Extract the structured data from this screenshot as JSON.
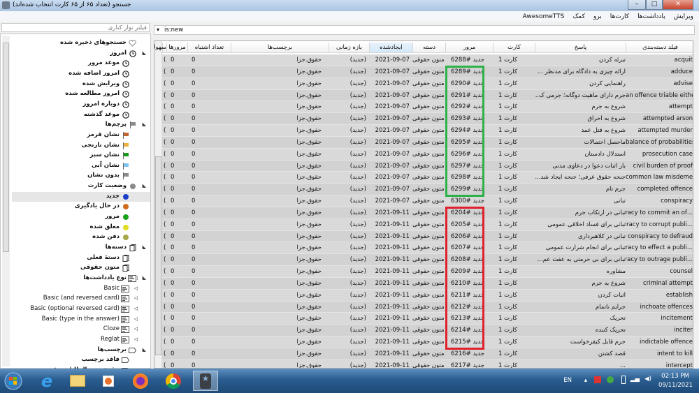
{
  "window": {
    "title": "جستجو (تعداد ۶۵ از ۶۵ کارت انتخاب شده‌اند)",
    "minimize": "–",
    "maximize": "□",
    "close": "✕"
  },
  "menu": [
    "ویرایش",
    "یادداشت‌ها",
    "کارت‌ها",
    "برو",
    "کمک",
    "AwesomeTTS"
  ],
  "sidebar": {
    "filter_placeholder": "فیلتر نوار کناری",
    "items": [
      {
        "label": "جستجوهای ذخیره شده",
        "level": 0,
        "icon": "heart-icon",
        "arrow": false
      },
      {
        "label": "امروز",
        "level": 0,
        "icon": "clock-icon",
        "arrow": true
      },
      {
        "label": "موعد مرور",
        "level": 1,
        "icon": "clock-icon"
      },
      {
        "label": "امروز اضافه شده",
        "level": 1,
        "icon": "clock-icon"
      },
      {
        "label": "ویرایش شده",
        "level": 1,
        "icon": "clock-icon"
      },
      {
        "label": "امروز مطالعه شده",
        "level": 1,
        "icon": "clock-icon"
      },
      {
        "label": "دوباره امروز",
        "level": 1,
        "icon": "clock-icon"
      },
      {
        "label": "موعد گذشته",
        "level": 1,
        "icon": "clock-icon"
      },
      {
        "label": "پرچم‌ها",
        "level": 0,
        "icon": "flag-icon",
        "color": "#8c8c8c",
        "arrow": true
      },
      {
        "label": "نشان قرمز",
        "level": 1,
        "icon": "flag-icon",
        "color": "#c2642f"
      },
      {
        "label": "نشان نارنجی",
        "level": 1,
        "icon": "flag-icon",
        "color": "#f0b040"
      },
      {
        "label": "نشان سبز",
        "level": 1,
        "icon": "flag-icon",
        "color": "#1a9a1a"
      },
      {
        "label": "نشان آبی",
        "level": 1,
        "icon": "flag-icon",
        "color": "#7ec4f0"
      },
      {
        "label": "بدون نشان",
        "level": 1,
        "icon": "flag-icon",
        "color": "#8c8c8c"
      },
      {
        "label": "وضعیت کارت",
        "level": 0,
        "icon": "dot-icon",
        "color": "#8a8a8a",
        "arrow": true
      },
      {
        "label": "جدید",
        "level": 1,
        "icon": "dot-icon",
        "color": "#1c3fc9",
        "selected": true
      },
      {
        "label": "در حال یادگیری",
        "level": 1,
        "icon": "dot-icon",
        "color": "#d06a1c"
      },
      {
        "label": "مرور",
        "level": 1,
        "icon": "dot-icon",
        "color": "#1aa01a"
      },
      {
        "label": "معلق شده",
        "level": 1,
        "icon": "dot-icon",
        "color": "#e0dc20"
      },
      {
        "label": "دفن شده",
        "level": 1,
        "icon": "dot-icon",
        "color": "#a8a848"
      },
      {
        "label": "دسته‌ها",
        "level": 0,
        "icon": "deck-icon",
        "arrow": true
      },
      {
        "label": "دستهٔ فعلی",
        "level": 1,
        "icon": "deck-icon"
      },
      {
        "label": "متون حقوقی",
        "level": 1,
        "icon": "deck-icon"
      },
      {
        "label": "نوع یادداشت‌ها",
        "level": 0,
        "icon": "notetype-icon",
        "arrow": true
      },
      {
        "label": "Basic",
        "level": 1,
        "icon": "notetype-icon",
        "ltr": true
      },
      {
        "label": "Basic (and reversed card)",
        "level": 1,
        "icon": "notetype-icon",
        "ltr": true
      },
      {
        "label": "Basic (optional reversed card)",
        "level": 1,
        "icon": "notetype-icon",
        "ltr": true
      },
      {
        "label": "Basic (type in the answer)",
        "level": 1,
        "icon": "notetype-icon",
        "ltr": true
      },
      {
        "label": "Cloze",
        "level": 1,
        "icon": "notetype-icon",
        "ltr": true
      },
      {
        "label": "Reglat",
        "level": 1,
        "icon": "notetype-icon",
        "ltr": true
      },
      {
        "label": "برچسب‌ها",
        "level": 0,
        "icon": "tag-icon",
        "arrow": true
      },
      {
        "label": "فاقد برچسب",
        "level": 1,
        "icon": "tag-icon"
      },
      {
        "label": "حقوق-بین-الملل/تعریف",
        "level": 1,
        "icon": "tag-icon"
      }
    ]
  },
  "search": {
    "value": "is:new"
  },
  "table": {
    "headers": {
      "sort_field": "فیلد دسته‌بندی",
      "answer": "پاسخ",
      "card": "کارت",
      "due": "مرور",
      "deck": "دسته",
      "created": "ایجاد‌شده",
      "interval": "بازه زمانی",
      "tags": "برچسب‌ها",
      "lapses": "تعداد اشتباه",
      "reviews": "مرورها",
      "ease": "سهولت"
    },
    "sorted_column": "created",
    "rows": [
      [
        "acquit",
        "تبرئه کردن",
        "کارت 1",
        "جدید #6288",
        "متون حقوقی",
        "2021-09-07",
        "(جدید)",
        "حقوق.جزا",
        "0",
        "0",
        "(جدید)"
      ],
      [
        "adduce",
        "ارائه چیزی به دادگاه برای مدنظر ...",
        "کارت 1",
        "جدید #6289",
        "متون حقوقی",
        "2021-09-07",
        "(جدید)",
        "حقوق.جزا",
        "0",
        "0",
        "(جدید)"
      ],
      [
        "advise",
        "راهنمایی کردن",
        "کارت 1",
        "جدید #6290",
        "متون حقوقی",
        "2021-09-07",
        "(جدید)",
        "حقوق.جزا",
        "0",
        "0",
        "(جدید)"
      ],
      [
        "an offence triable either way",
        "جرم دارای ماهیت دوگانه؛ جرمی ک...",
        "کارت 1",
        "جدید #6291",
        "متون حقوقی",
        "2021-09-07",
        "(جدید)",
        "حقوق.جزا",
        "0",
        "0",
        "(جدید)"
      ],
      [
        "attempt",
        "شروع به جرم",
        "کارت 1",
        "جدید #6292",
        "متون حقوقی",
        "2021-09-07",
        "(جدید)",
        "حقوق.جزا",
        "0",
        "0",
        "(جدید)"
      ],
      [
        "attempted arson",
        "شروع به احراق",
        "کارت 1",
        "جدید #6293",
        "متون حقوقی",
        "2021-09-07",
        "(جدید)",
        "حقوق.جزا",
        "0",
        "0",
        "(جدید)"
      ],
      [
        "attempted murder",
        "شروع به قتل عمد",
        "کارت 1",
        "جدید #6294",
        "متون حقوقی",
        "2021-09-07",
        "(جدید)",
        "حقوق.جزا",
        "0",
        "0",
        "(جدید)"
      ],
      [
        "balance of probabilities",
        "ماحصل احتمالات",
        "کارت 1",
        "جدید #6295",
        "متون حقوقی",
        "2021-09-07",
        "(جدید)",
        "حقوق.جزا",
        "0",
        "0",
        "(جدید)"
      ],
      [
        "prosecution case",
        "استدلال دادستان",
        "کارت 1",
        "جدید #6296",
        "متون حقوقی",
        "2021-09-07",
        "(جدید)",
        "حقوق.جزا",
        "0",
        "0",
        "(جدید)"
      ],
      [
        "civil burden of proof",
        "بار اثبات دعوا در دعاوی مدنی",
        "کارت 1",
        "جدید #6297",
        "متون حقوقی",
        "2021-09-07",
        "(جدید)",
        "حقوق.جزا",
        "0",
        "0",
        "(جدید)"
      ],
      [
        "common law misdemeanor",
        "جنحه حقوق عرفی؛ جنحه ایجاد شد...",
        "کارت 1",
        "جدید #6298",
        "متون حقوقی",
        "2021-09-07",
        "(جدید)",
        "حقوق.جزا",
        "0",
        "0",
        "(جدید)"
      ],
      [
        "completed offence",
        "جرم تام",
        "کارت 1",
        "جدید #6299",
        "متون حقوقی",
        "2021-09-07",
        "(جدید)",
        "حقوق.جزا",
        "0",
        "0",
        "(جدید)"
      ],
      [
        "conspiracy",
        "تبانی",
        "کارت 1",
        "جدید #6300",
        "متون حقوقی",
        "2021-09-07",
        "(جدید)",
        "حقوق.جزا",
        "0",
        "0",
        "(جدید)"
      ],
      [
        "...conspiracy to commit an of",
        "تبانی در ارتکاب جرم",
        "کارت 1",
        "جدید #6204",
        "متون حقوقی",
        "2021-09-11",
        "(جدید)",
        "حقوق.جزا",
        "0",
        "0",
        "(جدید)"
      ],
      [
        "...conspiracy to corrupt publi",
        "تبانی برای فساد اخلاقی عمومی",
        "کارت 1",
        "جدید #6205",
        "متون حقوقی",
        "2021-09-11",
        "(جدید)",
        "حقوق.جزا",
        "0",
        "0",
        "(جدید)"
      ],
      [
        "conspiracy to defraud",
        "تبانی در کلاهبرداری",
        "کارت 1",
        "جدید #6206",
        "متون حقوقی",
        "2021-09-11",
        "(جدید)",
        "حقوق.جزا",
        "0",
        "0",
        "(جدید)"
      ],
      [
        "...conspiracy to effect a publi",
        "تبانی برای انجام شرارت عمومی",
        "کارت 1",
        "جدید #6207",
        "متون حقوقی",
        "2021-09-11",
        "(جدید)",
        "حقوق.جزا",
        "0",
        "0",
        "(جدید)"
      ],
      [
        "...conspiracy to outrage publi",
        "تبانی برای بی حرمتی به عفت عم...",
        "کارت 1",
        "جدید #6208",
        "متون حقوقی",
        "2021-09-11",
        "(جدید)",
        "حقوق.جزا",
        "0",
        "0",
        "(جدید)"
      ],
      [
        "counsel",
        "مشاوره",
        "کارت 1",
        "جدید #6209",
        "متون حقوقی",
        "2021-09-11",
        "(جدید)",
        "حقوق.جزا",
        "0",
        "0",
        "(جدید)"
      ],
      [
        "criminal attempt",
        "شروع به جرم",
        "کارت 1",
        "جدید #6210",
        "متون حقوقی",
        "2021-09-11",
        "(جدید)",
        "حقوق.جزا",
        "0",
        "0",
        "(جدید)"
      ],
      [
        "establish",
        "اثبات کردن",
        "کارت 1",
        "جدید #6211",
        "متون حقوقی",
        "2021-09-11",
        "(جدید)",
        "حقوق.جزا",
        "0",
        "0",
        "(جدید)"
      ],
      [
        "inchoate offences",
        "جرایم ناتمام",
        "کارت 1",
        "جدید #6212",
        "متون حقوقی",
        "2021-09-11",
        "(جدید)",
        "حقوق.جزا",
        "0",
        "0",
        "(جدید)"
      ],
      [
        "incitement",
        "تحریک",
        "کارت 1",
        "جدید #6213",
        "متون حقوقی",
        "2021-09-11",
        "(جدید)",
        "حقوق.جزا",
        "0",
        "0",
        "(جدید)"
      ],
      [
        "inciter",
        "تحریک کننده",
        "کارت 1",
        "جدید #6214",
        "متون حقوقی",
        "2021-09-11",
        "(جدید)",
        "حقوق.جزا",
        "0",
        "0",
        "(جدید)"
      ],
      [
        "indictable offence",
        "جرم قابل کیفرخواست",
        "کارت 1",
        "جدید #6215",
        "متون حقوقی",
        "2021-09-11",
        "(جدید)",
        "حقوق.جزا",
        "0",
        "0",
        "(جدید)"
      ],
      [
        "intent to kill",
        "قصد کشتن",
        "کارت 1",
        "جدید #6216",
        "متون حقوقی",
        "2021-09-11",
        "(جدید)",
        "حقوق.جزا",
        "0",
        "0",
        "(جدید)"
      ],
      [
        "intercept",
        "...",
        "کارت 1",
        "جدید #6217",
        "متون حقوقی",
        "2021-09-11",
        "(جدید)",
        "حقوق.جزا",
        "0",
        "0",
        "(جدید)"
      ]
    ],
    "highlights": [
      {
        "color": "#2fb14a",
        "from_row": 1,
        "to_row": 11
      },
      {
        "color": "#e0212b",
        "from_row": 13,
        "to_row": 24
      }
    ]
  },
  "taskbar": {
    "apps": [
      "start-button",
      "internet-explorer-icon",
      "file-explorer-icon",
      "media-player-icon",
      "firefox-icon",
      "chrome-icon",
      "anki-icon"
    ],
    "language": "EN",
    "time": "02:13 PM",
    "date": "09/11/2021"
  }
}
